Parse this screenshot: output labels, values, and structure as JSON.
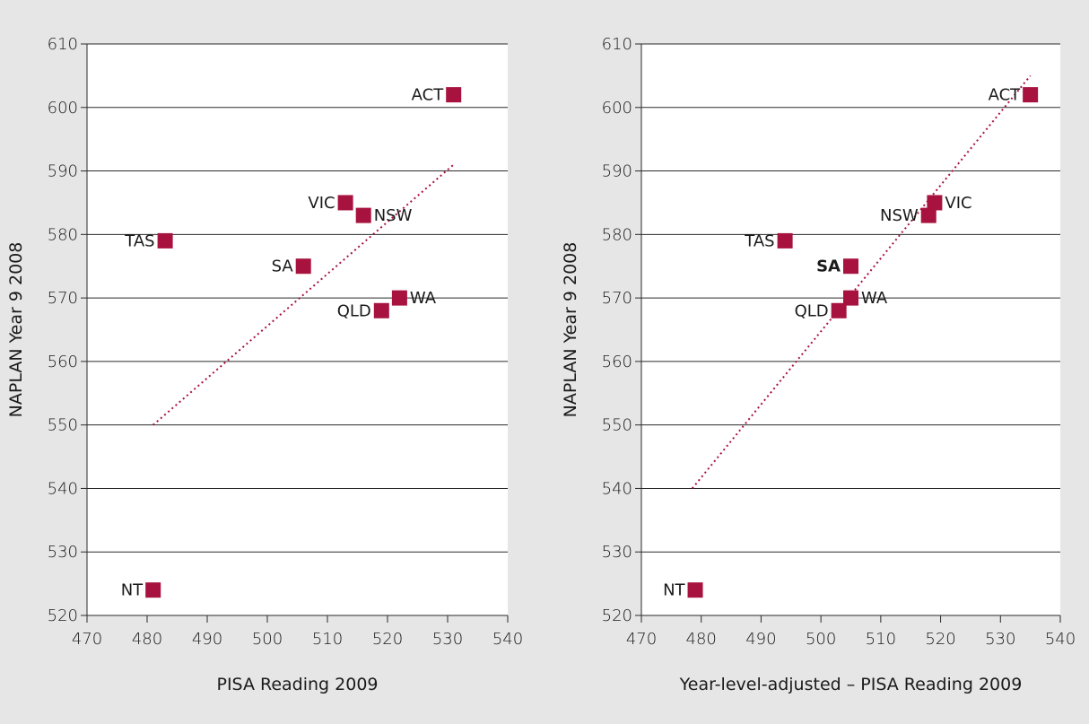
{
  "chart_data": [
    {
      "type": "scatter",
      "title": "",
      "xlabel": "PISA Reading 2009",
      "ylabel": "NAPLAN Year 9 2008",
      "xlim": [
        470,
        540
      ],
      "ylim": [
        520,
        610
      ],
      "xticks": [
        470,
        480,
        490,
        500,
        510,
        520,
        530,
        540
      ],
      "yticks": [
        520,
        530,
        540,
        550,
        560,
        570,
        580,
        590,
        600,
        610
      ],
      "grid": "horizontal",
      "marker_color": "#a8123e",
      "trendline_color": "#a8123e",
      "trendline": [
        [
          481,
          550
        ],
        [
          531,
          591
        ]
      ],
      "points": [
        {
          "label": "ACT",
          "x": 531,
          "y": 602,
          "label_side": "left"
        },
        {
          "label": "VIC",
          "x": 513,
          "y": 585,
          "label_side": "left"
        },
        {
          "label": "NSW",
          "x": 516,
          "y": 583,
          "label_side": "right"
        },
        {
          "label": "TAS",
          "x": 483,
          "y": 579,
          "label_side": "left"
        },
        {
          "label": "SA",
          "x": 506,
          "y": 575,
          "label_side": "left"
        },
        {
          "label": "WA",
          "x": 522,
          "y": 570,
          "label_side": "right"
        },
        {
          "label": "QLD",
          "x": 519,
          "y": 568,
          "label_side": "left"
        },
        {
          "label": "NT",
          "x": 481,
          "y": 524,
          "label_side": "left"
        }
      ]
    },
    {
      "type": "scatter",
      "title": "",
      "xlabel": "Year-level-adjusted – PISA Reading 2009",
      "ylabel": "NAPLAN Year 9 2008",
      "xlim": [
        470,
        540
      ],
      "ylim": [
        520,
        610
      ],
      "xticks": [
        470,
        480,
        490,
        500,
        510,
        520,
        530,
        540
      ],
      "yticks": [
        520,
        530,
        540,
        550,
        560,
        570,
        580,
        590,
        600,
        610
      ],
      "grid": "horizontal",
      "marker_color": "#a8123e",
      "trendline_color": "#a8123e",
      "trendline": [
        [
          478.5,
          540
        ],
        [
          535,
          605
        ]
      ],
      "points": [
        {
          "label": "ACT",
          "x": 535,
          "y": 602,
          "label_side": "left"
        },
        {
          "label": "VIC",
          "x": 519,
          "y": 585,
          "label_side": "right"
        },
        {
          "label": "NSW",
          "x": 518,
          "y": 583,
          "label_side": "left"
        },
        {
          "label": "TAS",
          "x": 494,
          "y": 579,
          "label_side": "left"
        },
        {
          "label": "SA",
          "x": 505,
          "y": 575,
          "label_side": "left",
          "bold": true
        },
        {
          "label": "WA",
          "x": 505,
          "y": 570,
          "label_side": "right"
        },
        {
          "label": "QLD",
          "x": 503,
          "y": 568,
          "label_side": "left"
        },
        {
          "label": "NT",
          "x": 479,
          "y": 524,
          "label_side": "left"
        }
      ]
    }
  ]
}
